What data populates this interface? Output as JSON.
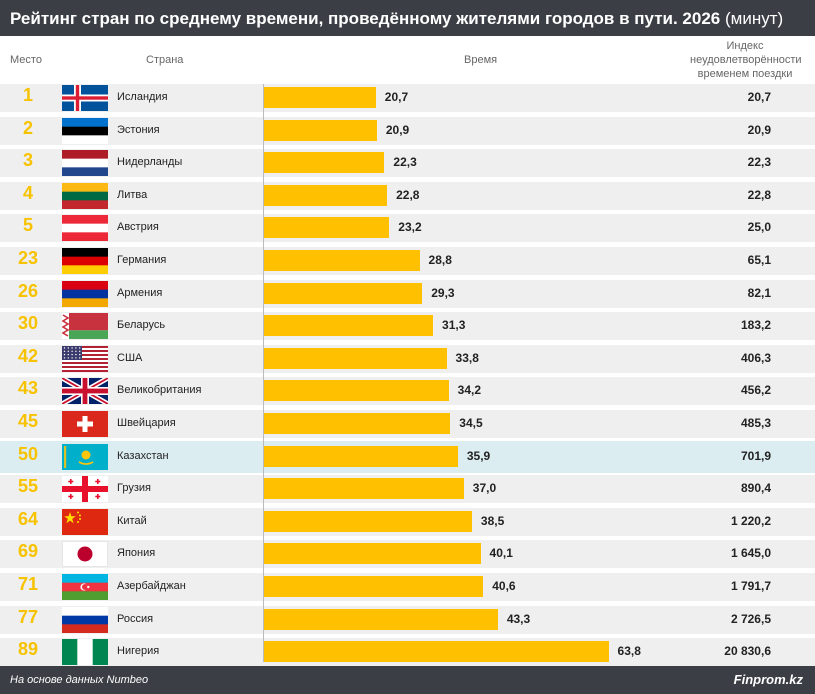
{
  "title": {
    "main": "Рейтинг стран по среднему времени, проведённому жителями городов в пути. 2026",
    "unit": "(минут)"
  },
  "headers": {
    "rank": "Место",
    "country": "Страна",
    "time": "Время",
    "index": "Индекс неудовлетворённости временем поездки"
  },
  "footer": {
    "source": "На основе данных Numbeo",
    "brand": "Finprom.kz"
  },
  "colors": {
    "bar": "#ffc000",
    "rank": "#f7c200",
    "highlight": "#dcedf2",
    "stripe": "#efefef",
    "title_bg": "#3b3f45"
  },
  "chart_data": {
    "type": "bar",
    "orientation": "horizontal",
    "title": "Рейтинг стран по среднему времени, проведённому жителями городов в пути. 2026 (минут)",
    "xlabel": "Время",
    "ylabel": "",
    "xlim": [
      0,
      70
    ],
    "grid": false,
    "highlight": "Казахстан",
    "rows": [
      {
        "rank": "1",
        "country": "Исландия",
        "flag": "iceland-flag-icon",
        "time": 20.7,
        "time_label": "20,7",
        "index_label": "20,7"
      },
      {
        "rank": "2",
        "country": "Эстония",
        "flag": "estonia-flag-icon",
        "time": 20.9,
        "time_label": "20,9",
        "index_label": "20,9"
      },
      {
        "rank": "3",
        "country": "Нидерланды",
        "flag": "netherlands-flag-icon",
        "time": 22.3,
        "time_label": "22,3",
        "index_label": "22,3"
      },
      {
        "rank": "4",
        "country": "Литва",
        "flag": "lithuania-flag-icon",
        "time": 22.8,
        "time_label": "22,8",
        "index_label": "22,8"
      },
      {
        "rank": "5",
        "country": "Австрия",
        "flag": "austria-flag-icon",
        "time": 23.2,
        "time_label": "23,2",
        "index_label": "25,0"
      },
      {
        "rank": "23",
        "country": "Германия",
        "flag": "germany-flag-icon",
        "time": 28.8,
        "time_label": "28,8",
        "index_label": "65,1"
      },
      {
        "rank": "26",
        "country": "Армения",
        "flag": "armenia-flag-icon",
        "time": 29.3,
        "time_label": "29,3",
        "index_label": "82,1"
      },
      {
        "rank": "30",
        "country": "Беларусь",
        "flag": "belarus-flag-icon",
        "time": 31.3,
        "time_label": "31,3",
        "index_label": "183,2"
      },
      {
        "rank": "42",
        "country": "США",
        "flag": "usa-flag-icon",
        "time": 33.8,
        "time_label": "33,8",
        "index_label": "406,3"
      },
      {
        "rank": "43",
        "country": "Великобритания",
        "flag": "uk-flag-icon",
        "time": 34.2,
        "time_label": "34,2",
        "index_label": "456,2"
      },
      {
        "rank": "45",
        "country": "Швейцария",
        "flag": "switzerland-flag-icon",
        "time": 34.5,
        "time_label": "34,5",
        "index_label": "485,3"
      },
      {
        "rank": "50",
        "country": "Казахстан",
        "flag": "kazakhstan-flag-icon",
        "time": 35.9,
        "time_label": "35,9",
        "index_label": "701,9"
      },
      {
        "rank": "55",
        "country": "Грузия",
        "flag": "georgia-flag-icon",
        "time": 37.0,
        "time_label": "37,0",
        "index_label": "890,4"
      },
      {
        "rank": "64",
        "country": "Китай",
        "flag": "china-flag-icon",
        "time": 38.5,
        "time_label": "38,5",
        "index_label": "1 220,2"
      },
      {
        "rank": "69",
        "country": "Япония",
        "flag": "japan-flag-icon",
        "time": 40.1,
        "time_label": "40,1",
        "index_label": "1 645,0"
      },
      {
        "rank": "71",
        "country": "Азербайджан",
        "flag": "azerbaijan-flag-icon",
        "time": 40.6,
        "time_label": "40,6",
        "index_label": "1 791,7"
      },
      {
        "rank": "77",
        "country": "Россия",
        "flag": "russia-flag-icon",
        "time": 43.3,
        "time_label": "43,3",
        "index_label": "2 726,5"
      },
      {
        "rank": "89",
        "country": "Нигерия",
        "flag": "nigeria-flag-icon",
        "time": 63.8,
        "time_label": "63,8",
        "index_label": "20 830,6"
      }
    ]
  }
}
